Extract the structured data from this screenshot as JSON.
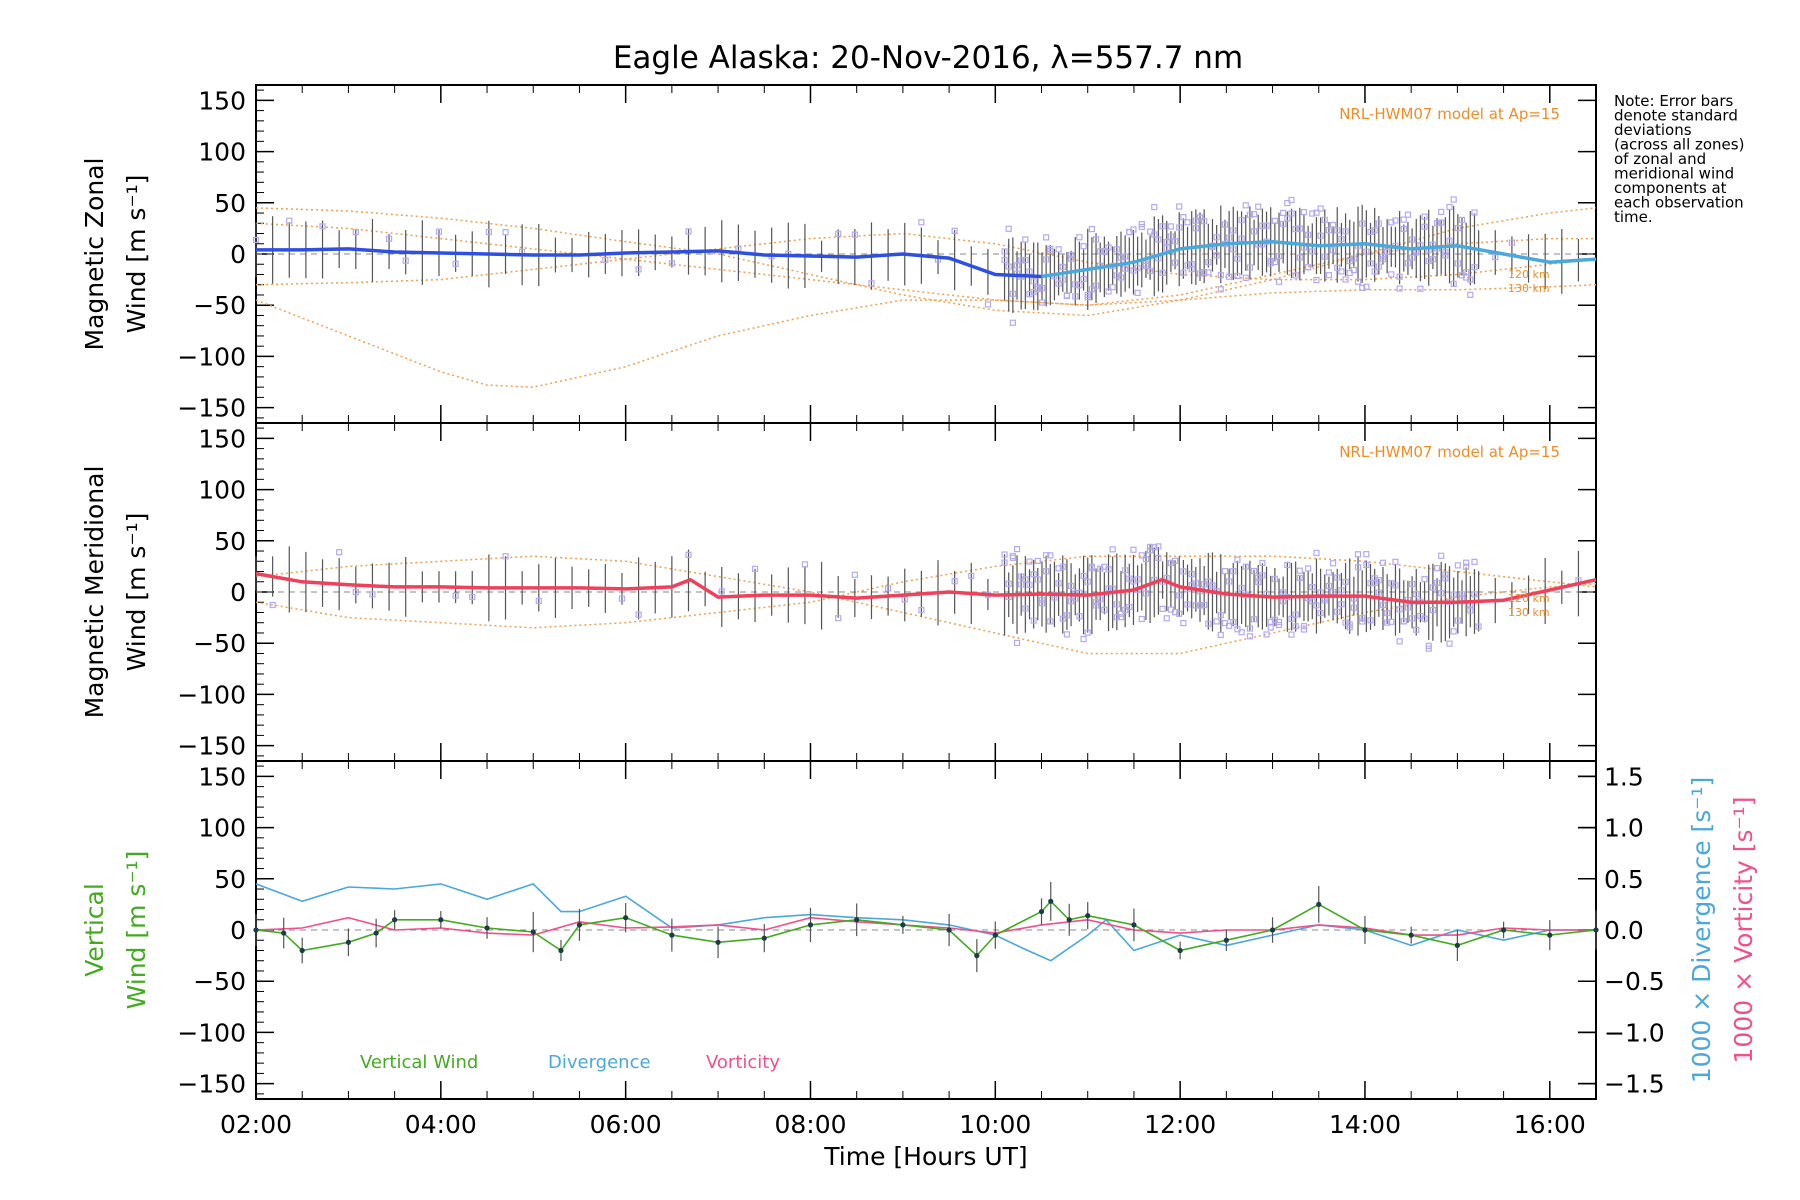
{
  "chart_data": {
    "type": "line",
    "title": "Eagle Alaska: 20-Nov-2016, λ=557.7 nm",
    "note_lines": [
      "Note: Error bars",
      "denote standard",
      "deviations",
      "(across all zones)",
      "of zonal and",
      "meridional wind",
      "components at",
      "each observation",
      "time."
    ],
    "x_axis": {
      "label": "Time [Hours UT]",
      "range": [
        2.0,
        16.5
      ],
      "tick_values": [
        2,
        4,
        6,
        8,
        10,
        12,
        14,
        16
      ],
      "tick_labels": [
        "02:00",
        "04:00",
        "06:00",
        "08:00",
        "10:00",
        "12:00",
        "14:00",
        "16:00"
      ]
    },
    "colors": {
      "zonal": "#2e50e0",
      "zonal_late": "#4aa8dc",
      "meridional": "#f0405a",
      "model": "#f0a050",
      "model_label": "#f08c28",
      "scatter": "#b4aaf0",
      "vertical": "#44aa22",
      "vertical_marker": "#1e3c46",
      "divergence": "#4aa8dc",
      "vorticity": "#f0508c",
      "errorbar": "#555555"
    },
    "panels": [
      {
        "id": "zonal",
        "ylabel_line1": "Magnetic Zonal",
        "ylabel_line2": "Wind [m s⁻¹]",
        "ylim": [
          -165,
          165
        ],
        "tick_values": [
          150,
          100,
          50,
          0,
          -50,
          -100,
          -150
        ],
        "tick_labels": [
          "150",
          "100",
          "50",
          "0",
          "−50",
          "−100",
          "−150"
        ],
        "model_title": "NRL-HWM07 model at Ap=15",
        "model_level_labels": [
          "120 km",
          "130 km"
        ],
        "series": {
          "observed": {
            "x": [
              2.0,
              2.5,
              3.0,
              3.5,
              4.0,
              4.5,
              5.0,
              5.5,
              6.0,
              6.5,
              7.0,
              7.5,
              8.0,
              8.5,
              9.0,
              9.5,
              10.0,
              10.5,
              11.0,
              11.5,
              12.0,
              12.5,
              13.0,
              13.5,
              14.0,
              14.5,
              15.0,
              15.5,
              16.0,
              16.5
            ],
            "y": [
              4,
              4,
              5,
              2,
              1,
              0,
              -1,
              -1,
              1,
              2,
              3,
              -1,
              -2,
              -3,
              0,
              -4,
              -20,
              -22,
              -15,
              -8,
              5,
              10,
              12,
              8,
              10,
              5,
              8,
              0,
              -8,
              -5
            ]
          },
          "model_120km": {
            "x": [
              2.0,
              3.0,
              4.0,
              5.0,
              6.0,
              7.0,
              8.0,
              9.0,
              10.0,
              11.0,
              12.0,
              13.0,
              14.0,
              15.0,
              16.0,
              16.5
            ],
            "y": [
              -30,
              -28,
              -25,
              -15,
              -5,
              5,
              15,
              20,
              10,
              -8,
              -20,
              -25,
              -25,
              -20,
              -10,
              -5
            ]
          },
          "model_130km": {
            "x": [
              2.0,
              3.0,
              4.0,
              4.5,
              5.0,
              6.0,
              7.0,
              8.0,
              9.0,
              10.0,
              11.0,
              12.0,
              13.0,
              14.0,
              15.0,
              16.0,
              16.5
            ],
            "y": [
              -45,
              -80,
              -115,
              -128,
              -130,
              -110,
              -80,
              -60,
              -45,
              -45,
              -50,
              -45,
              -38,
              -35,
              -35,
              -32,
              -30
            ]
          },
          "model_upper": {
            "x": [
              2.0,
              3.0,
              4.0,
              5.0,
              6.0,
              7.0,
              8.0,
              9.0,
              10.0,
              11.0,
              12.0,
              13.0,
              14.0,
              15.0,
              16.0,
              16.5
            ],
            "y": [
              45,
              42,
              35,
              25,
              12,
              0,
              -20,
              -40,
              -55,
              -60,
              -45,
              -25,
              0,
              25,
              40,
              45
            ]
          },
          "model_lower": {
            "x": [
              2.0,
              3.0,
              4.0,
              5.0,
              6.0,
              7.0,
              8.0,
              9.0,
              10.0,
              11.0,
              12.0,
              13.0,
              14.0,
              15.0,
              16.0,
              16.5
            ],
            "y": [
              30,
              25,
              15,
              5,
              -5,
              -15,
              -25,
              -35,
              -45,
              -50,
              -40,
              -20,
              0,
              10,
              15,
              15
            ]
          }
        }
      },
      {
        "id": "meridional",
        "ylabel_line1": "Magnetic Meridional",
        "ylabel_line2": "Wind [m s⁻¹]",
        "ylim": [
          -165,
          165
        ],
        "tick_values": [
          150,
          100,
          50,
          0,
          -50,
          -100,
          -150
        ],
        "tick_labels": [
          "150",
          "100",
          "50",
          "0",
          "−50",
          "−100",
          "−150"
        ],
        "model_title": "NRL-HWM07 model at Ap=15",
        "model_level_labels": [
          "120 km",
          "130 km"
        ],
        "series": {
          "observed": {
            "x": [
              2.0,
              2.5,
              3.0,
              3.5,
              4.0,
              4.5,
              5.0,
              5.5,
              6.0,
              6.5,
              6.7,
              7.0,
              7.5,
              8.0,
              8.5,
              9.0,
              9.5,
              10.0,
              10.5,
              11.0,
              11.5,
              11.8,
              12.0,
              12.5,
              13.0,
              13.5,
              14.0,
              14.5,
              15.0,
              15.5,
              16.0,
              16.5
            ],
            "y": [
              18,
              10,
              7,
              5,
              5,
              4,
              4,
              4,
              3,
              5,
              12,
              -5,
              -3,
              -3,
              -6,
              -3,
              0,
              -3,
              -2,
              -3,
              2,
              12,
              5,
              -2,
              -5,
              -4,
              -4,
              -10,
              -10,
              -8,
              2,
              12
            ]
          },
          "model_upper": {
            "x": [
              2.0,
              3.0,
              4.0,
              5.0,
              6.0,
              7.0,
              8.0,
              9.0,
              10.0,
              11.0,
              12.0,
              13.0,
              14.0,
              15.0,
              16.0,
              16.5
            ],
            "y": [
              15,
              25,
              30,
              35,
              30,
              15,
              0,
              -20,
              -40,
              -60,
              -60,
              -40,
              -20,
              -5,
              5,
              8
            ]
          },
          "model_lower": {
            "x": [
              2.0,
              3.0,
              4.0,
              5.0,
              6.0,
              7.0,
              8.0,
              9.0,
              10.0,
              11.0,
              12.0,
              13.0,
              14.0,
              15.0,
              16.0,
              16.5
            ],
            "y": [
              -10,
              -25,
              -30,
              -35,
              -30,
              -20,
              -10,
              10,
              25,
              35,
              35,
              35,
              30,
              20,
              10,
              5
            ]
          }
        }
      },
      {
        "id": "vertical",
        "ylabel_line1": "Vertical",
        "ylabel_line2": "Wind [m s⁻¹]",
        "ylim": [
          -165,
          165
        ],
        "tick_values": [
          150,
          100,
          50,
          0,
          -50,
          -100,
          -150
        ],
        "tick_labels": [
          "150",
          "100",
          "50",
          "0",
          "−50",
          "−100",
          "−150"
        ],
        "right_axis": {
          "ylim": [
            -1.65,
            1.65
          ],
          "tick_values": [
            1.5,
            1.0,
            0.5,
            0.0,
            -0.5,
            -1.0,
            -1.5
          ],
          "tick_labels": [
            "1.5",
            "1.0",
            "0.5",
            "0.0",
            "−0.5",
            "−1.0",
            "−1.5"
          ],
          "label_divergence": "1000 × Divergence [s⁻¹]",
          "label_vorticity": "1000 × Vorticity [s⁻¹]"
        },
        "legend": [
          "Vertical Wind",
          "Divergence",
          "Vorticity"
        ],
        "series": {
          "vertical_wind": {
            "x": [
              2.0,
              2.3,
              2.5,
              3.0,
              3.3,
              3.5,
              4.0,
              4.5,
              5.0,
              5.3,
              5.5,
              6.0,
              6.5,
              7.0,
              7.5,
              8.0,
              8.5,
              9.0,
              9.5,
              9.8,
              10.0,
              10.5,
              10.6,
              10.8,
              11.0,
              11.5,
              12.0,
              12.5,
              13.0,
              13.5,
              14.0,
              14.5,
              15.0,
              15.5,
              16.0,
              16.5
            ],
            "y": [
              0,
              -3,
              -20,
              -12,
              -3,
              10,
              10,
              2,
              -2,
              -20,
              5,
              12,
              -5,
              -12,
              -8,
              5,
              10,
              5,
              0,
              -25,
              -5,
              18,
              28,
              10,
              14,
              5,
              -20,
              -10,
              0,
              25,
              0,
              -5,
              -15,
              0,
              -5,
              0
            ]
          },
          "divergence": {
            "x": [
              2.0,
              2.5,
              3.0,
              3.5,
              4.0,
              4.5,
              5.0,
              5.3,
              5.5,
              6.0,
              6.5,
              7.0,
              7.5,
              8.0,
              8.5,
              9.0,
              9.5,
              10.0,
              10.3,
              10.6,
              11.0,
              11.2,
              11.5,
              12.0,
              12.5,
              13.0,
              13.5,
              14.0,
              14.5,
              15.0,
              15.5,
              16.0,
              16.5
            ],
            "y": [
              0.45,
              0.28,
              0.42,
              0.4,
              0.45,
              0.3,
              0.45,
              0.18,
              0.18,
              0.33,
              0.02,
              0.05,
              0.12,
              0.15,
              0.12,
              0.1,
              0.05,
              -0.05,
              -0.18,
              -0.3,
              -0.05,
              0.1,
              -0.2,
              -0.05,
              -0.15,
              -0.05,
              0.05,
              0.0,
              -0.15,
              0.0,
              -0.1,
              0.0,
              0.0
            ]
          },
          "vorticity": {
            "x": [
              2.0,
              2.5,
              3.0,
              3.5,
              4.0,
              4.5,
              5.0,
              5.5,
              6.0,
              6.5,
              7.0,
              7.5,
              8.0,
              8.5,
              9.0,
              9.5,
              10.0,
              10.5,
              11.0,
              11.5,
              12.0,
              12.5,
              13.0,
              13.5,
              14.0,
              14.5,
              15.0,
              15.5,
              16.0,
              16.5
            ],
            "y": [
              0.0,
              0.02,
              0.12,
              0.0,
              0.02,
              -0.03,
              -0.05,
              0.08,
              0.02,
              0.03,
              0.05,
              0.0,
              0.12,
              0.08,
              0.05,
              0.02,
              -0.03,
              0.05,
              0.1,
              0.0,
              -0.03,
              0.0,
              0.0,
              0.05,
              0.02,
              -0.05,
              -0.05,
              0.02,
              0.0,
              0.0
            ]
          }
        }
      }
    ]
  }
}
